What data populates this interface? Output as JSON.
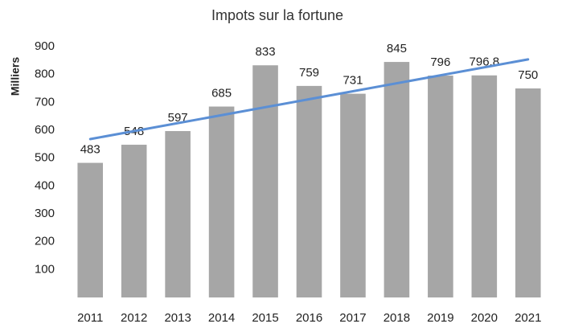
{
  "chart_data": {
    "type": "bar",
    "title": "Impots sur la fortune",
    "y_label": "Milliers",
    "categories": [
      "2011",
      "2012",
      "2013",
      "2014",
      "2015",
      "2016",
      "2017",
      "2018",
      "2019",
      "2020",
      "2021"
    ],
    "values": [
      483,
      548,
      597,
      685,
      833,
      759,
      731,
      845,
      796,
      796.8,
      750
    ],
    "color": "#a6a6a6",
    "ylim": [
      0,
      900
    ],
    "yticks": [
      100,
      200,
      300,
      400,
      500,
      600,
      700,
      800,
      900
    ],
    "grid": false,
    "trendline": true,
    "trendline_color": "#5b8fd5",
    "data_labels": true
  }
}
